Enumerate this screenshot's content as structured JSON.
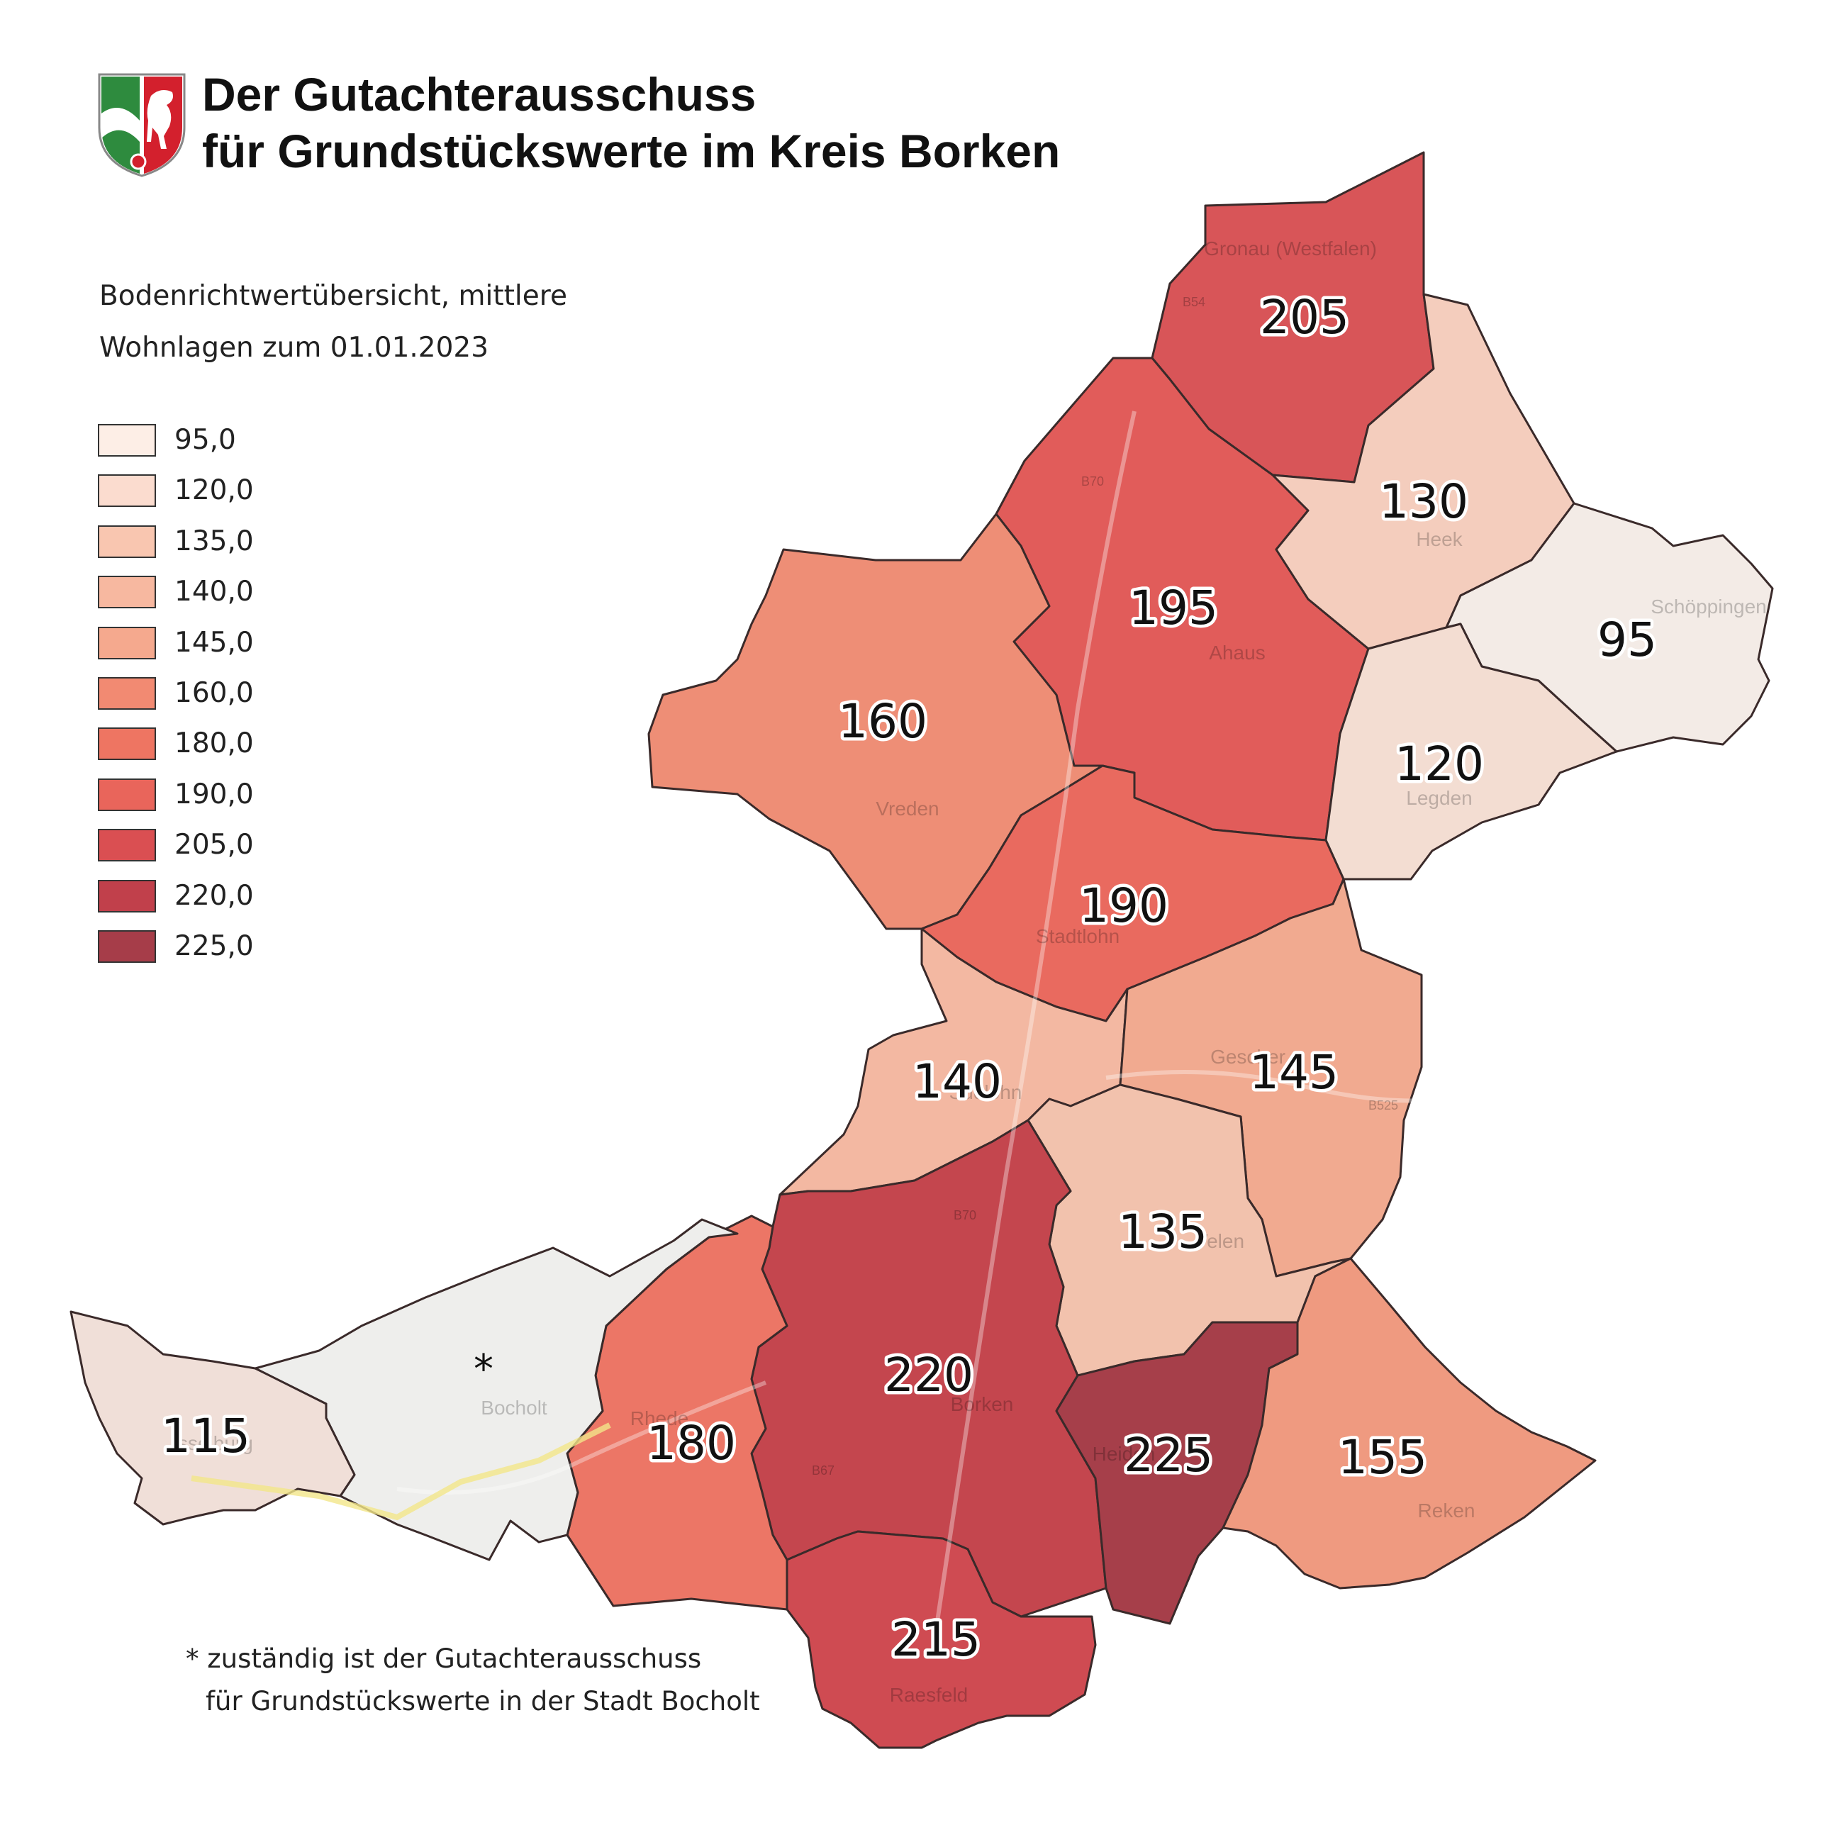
{
  "header": {
    "title_line1": "Der Gutachterausschuss",
    "title_line2": "für Grundstückswerte im Kreis Borken"
  },
  "subtitle": {
    "line1": "Bodenrichtwertübersicht,  mittlere",
    "line2": "Wohnlagen zum 01.01.2023"
  },
  "legend": {
    "items": [
      {
        "label": "95,0",
        "color": "#fdeee6"
      },
      {
        "label": "120,0",
        "color": "#fbdccf"
      },
      {
        "label": "135,0",
        "color": "#f9c6b0"
      },
      {
        "label": "140,0",
        "color": "#f7b8a0"
      },
      {
        "label": "145,0",
        "color": "#f5a98e"
      },
      {
        "label": "160,0",
        "color": "#f28a72"
      },
      {
        "label": "180,0",
        "color": "#ee7562"
      },
      {
        "label": "190,0",
        "color": "#e9655b"
      },
      {
        "label": "205,0",
        "color": "#da4f52"
      },
      {
        "label": "220,0",
        "color": "#c1404b"
      },
      {
        "label": "225,0",
        "color": "#a63d49"
      }
    ]
  },
  "regions": [
    {
      "name": "gronau",
      "value": "205",
      "place_label": "Gronau (Westfalen)",
      "color": "#d85558"
    },
    {
      "name": "ahaus",
      "value": "195",
      "place_label": "Ahaus",
      "color": "#e15c5a"
    },
    {
      "name": "heek",
      "value": "130",
      "place_label": "Heek",
      "color": "#f4cdbd"
    },
    {
      "name": "schoeppingen",
      "value": "95",
      "place_label": "Schöppingen",
      "color": "#f3ebe6"
    },
    {
      "name": "vreden",
      "value": "160",
      "place_label": "Vreden",
      "color": "#ee8e76"
    },
    {
      "name": "legden",
      "value": "120",
      "place_label": "Legden",
      "color": "#f3ddd2"
    },
    {
      "name": "stadtlohn",
      "value": "190",
      "place_label": "Stadtlohn",
      "color": "#e96a5f"
    },
    {
      "name": "suedlohn",
      "value": "140",
      "place_label": "Südlohn",
      "color": "#f3b8a2"
    },
    {
      "name": "gescher",
      "value": "145",
      "place_label": "Gescher",
      "color": "#f1aa90"
    },
    {
      "name": "velen",
      "value": "135",
      "place_label": "Velen",
      "color": "#f2c2ad"
    },
    {
      "name": "borken",
      "value": "220",
      "place_label": "Borken",
      "color": "#c4464e"
    },
    {
      "name": "rhede",
      "value": "180",
      "place_label": "Rhede",
      "color": "#ec7666"
    },
    {
      "name": "bocholt",
      "value": "*",
      "place_label": "Bocholt",
      "color": "#eeeeec"
    },
    {
      "name": "isselburg",
      "value": "115",
      "place_label": "Isselburg",
      "color": "#f0dfd8"
    },
    {
      "name": "heiden",
      "value": "225",
      "place_label": "Heiden",
      "color": "#a63f4a"
    },
    {
      "name": "reken",
      "value": "155",
      "place_label": "Reken",
      "color": "#ef9a80"
    },
    {
      "name": "raesfeld",
      "value": "215",
      "place_label": "Raesfeld",
      "color": "#cf4b52"
    }
  ],
  "road_labels": [
    "B54",
    "B70",
    "B525",
    "B67"
  ],
  "footnote": {
    "line1": "* zuständig ist der Gutachterausschuss",
    "line2": "für Grundstückswerte in der Stadt Bocholt"
  },
  "colors": {
    "crest_green": "#2e8b3e",
    "crest_red": "#d3202d",
    "crest_white": "#ffffff",
    "label_stroke": "#ffffff",
    "label_fill": "#111111"
  }
}
